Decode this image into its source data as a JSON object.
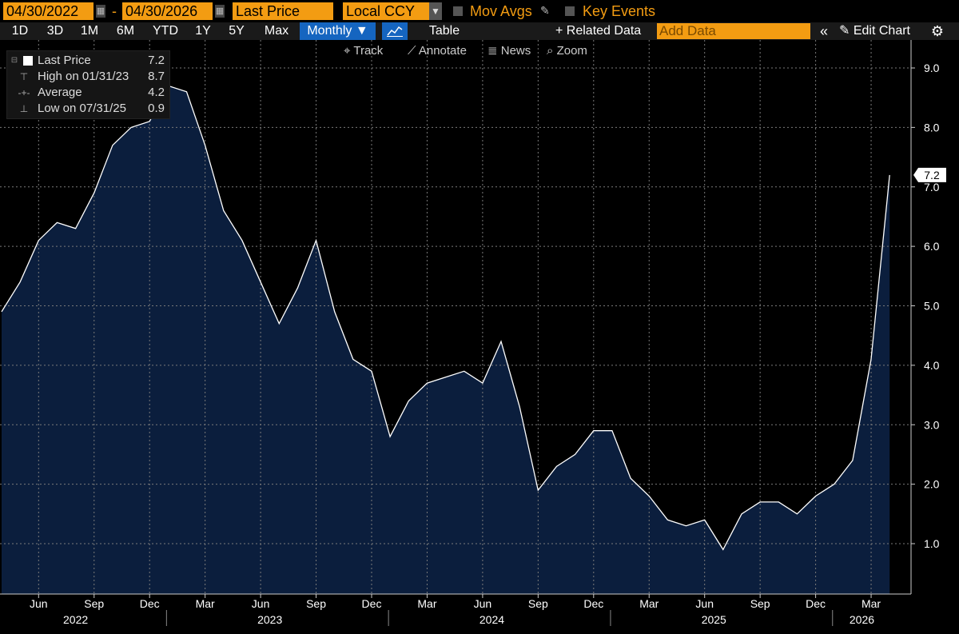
{
  "toolbar": {
    "start_date": "04/30/2022",
    "dash": "-",
    "end_date": "04/30/2026",
    "field": "Last Price",
    "currency": "Local CCY",
    "mov_avgs": "Mov Avgs",
    "key_events": "Key Events"
  },
  "periods": [
    "1D",
    "3D",
    "1M",
    "6M",
    "YTD",
    "1Y",
    "5Y",
    "Max"
  ],
  "frequency": "Monthly ▼",
  "table_label": "Table",
  "related_data": "+ Related Data",
  "add_data_placeholder": "Add Data",
  "edit_chart": "Edit Chart",
  "tools": {
    "track": "Track",
    "annotate": "Annotate",
    "news": "News",
    "zoom": "Zoom"
  },
  "legend": {
    "last_label": "Last Price",
    "last_value": "7.2",
    "high_label": "High on 01/31/23",
    "high_value": "8.7",
    "avg_label": "Average",
    "avg_value": "4.2",
    "low_label": "Low on 07/31/25",
    "low_value": "0.9"
  },
  "last_price_tag": "7.2",
  "colors": {
    "accent": "#f39c12",
    "active_button": "#1565c0",
    "area_fill": "#0b1e3d",
    "line": "#ffffff",
    "background": "#000000"
  },
  "chart_data": {
    "type": "area",
    "frequency": "monthly",
    "start": "2022-04",
    "x": [
      "2022-04",
      "2022-05",
      "2022-06",
      "2022-07",
      "2022-08",
      "2022-09",
      "2022-10",
      "2022-11",
      "2022-12",
      "2023-01",
      "2023-02",
      "2023-03",
      "2023-04",
      "2023-05",
      "2023-06",
      "2023-07",
      "2023-08",
      "2023-09",
      "2023-10",
      "2023-11",
      "2023-12",
      "2024-01",
      "2024-02",
      "2024-03",
      "2024-04",
      "2024-05",
      "2024-06",
      "2024-07",
      "2024-08",
      "2024-09",
      "2024-10",
      "2024-11",
      "2024-12",
      "2025-01",
      "2025-02",
      "2025-03",
      "2025-04",
      "2025-05",
      "2025-06",
      "2025-07",
      "2025-08",
      "2025-09",
      "2025-10",
      "2025-11",
      "2025-12",
      "2026-01",
      "2026-02",
      "2026-03",
      "2026-04"
    ],
    "values": [
      4.9,
      5.4,
      6.1,
      6.4,
      6.3,
      6.9,
      7.7,
      8.0,
      8.1,
      8.7,
      8.6,
      7.7,
      6.6,
      6.1,
      5.4,
      4.7,
      5.3,
      6.1,
      4.9,
      4.1,
      3.9,
      2.8,
      3.4,
      3.7,
      3.8,
      3.9,
      3.7,
      4.4,
      3.3,
      1.9,
      2.3,
      2.5,
      2.9,
      2.9,
      2.1,
      1.8,
      1.4,
      1.3,
      1.4,
      0.9,
      1.5,
      1.7,
      1.7,
      1.5,
      1.8,
      2.0,
      2.4,
      4.1,
      7.2
    ],
    "ylim": [
      0.2,
      9.6
    ],
    "yticks": [
      "9.0",
      "8.0",
      "7.0",
      "6.0",
      "5.0",
      "4.0",
      "3.0",
      "2.0",
      "1.0"
    ],
    "x_month_labels": [
      {
        "label": "Jun",
        "month": "2022-06"
      },
      {
        "label": "Sep",
        "month": "2022-09"
      },
      {
        "label": "Dec",
        "month": "2022-12"
      },
      {
        "label": "Mar",
        "month": "2023-03"
      },
      {
        "label": "Jun",
        "month": "2023-06"
      },
      {
        "label": "Sep",
        "month": "2023-09"
      },
      {
        "label": "Dec",
        "month": "2023-12"
      },
      {
        "label": "Mar",
        "month": "2024-03"
      },
      {
        "label": "Jun",
        "month": "2024-06"
      },
      {
        "label": "Sep",
        "month": "2024-09"
      },
      {
        "label": "Dec",
        "month": "2024-12"
      },
      {
        "label": "Mar",
        "month": "2025-03"
      },
      {
        "label": "Jun",
        "month": "2025-06"
      },
      {
        "label": "Sep",
        "month": "2025-09"
      },
      {
        "label": "Dec",
        "month": "2025-12"
      },
      {
        "label": "Mar",
        "month": "2026-03"
      }
    ],
    "x_year_labels": [
      "2022",
      "2023",
      "2024",
      "2025",
      "2026"
    ],
    "grid": true,
    "legend_position": "top-left"
  }
}
